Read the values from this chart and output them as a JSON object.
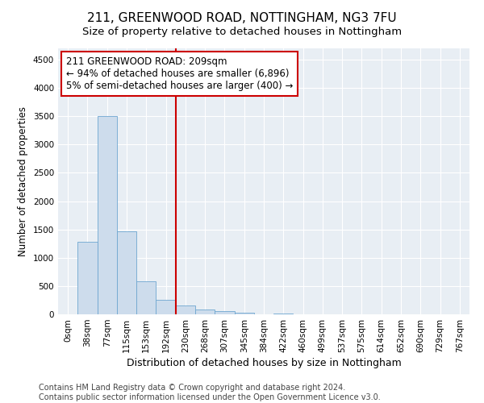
{
  "title": "211, GREENWOOD ROAD, NOTTINGHAM, NG3 7FU",
  "subtitle": "Size of property relative to detached houses in Nottingham",
  "xlabel": "Distribution of detached houses by size in Nottingham",
  "ylabel": "Number of detached properties",
  "categories": [
    "0sqm",
    "38sqm",
    "77sqm",
    "115sqm",
    "153sqm",
    "192sqm",
    "230sqm",
    "268sqm",
    "307sqm",
    "345sqm",
    "384sqm",
    "422sqm",
    "460sqm",
    "499sqm",
    "537sqm",
    "575sqm",
    "614sqm",
    "652sqm",
    "690sqm",
    "729sqm",
    "767sqm"
  ],
  "values": [
    0,
    1280,
    3500,
    1470,
    580,
    250,
    155,
    90,
    50,
    25,
    0,
    20,
    0,
    0,
    0,
    0,
    0,
    0,
    0,
    0,
    0
  ],
  "bar_color": "#cddcec",
  "bar_edge_color": "#6ea6d0",
  "vline_x_index": 6,
  "vline_color": "#cc0000",
  "annotation_box_text": "211 GREENWOOD ROAD: 209sqm\n← 94% of detached houses are smaller (6,896)\n5% of semi-detached houses are larger (400) →",
  "ylim": [
    0,
    4700
  ],
  "yticks": [
    0,
    500,
    1000,
    1500,
    2000,
    2500,
    3000,
    3500,
    4000,
    4500
  ],
  "footer": "Contains HM Land Registry data © Crown copyright and database right 2024.\nContains public sector information licensed under the Open Government Licence v3.0.",
  "background_color": "#ffffff",
  "plot_bg_color": "#e8eef4",
  "grid_color": "#ffffff",
  "title_fontsize": 11,
  "subtitle_fontsize": 9.5,
  "xlabel_fontsize": 9,
  "ylabel_fontsize": 8.5,
  "tick_fontsize": 7.5,
  "footer_fontsize": 7,
  "ann_fontsize": 8.5
}
